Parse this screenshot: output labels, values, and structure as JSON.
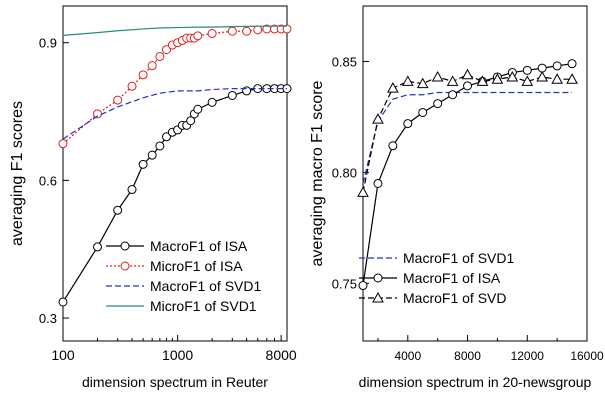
{
  "chart_data": [
    {
      "type": "line",
      "xscale": "log",
      "xlim": [
        100,
        9000
      ],
      "ylim": [
        0.25,
        0.98
      ],
      "xticks": [
        100,
        1000,
        8000
      ],
      "xtick_labels": [
        "100",
        "1000",
        "8000"
      ],
      "yticks": [
        0.3,
        0.6,
        0.9
      ],
      "ytick_labels": [
        "0.3",
        "0.6",
        "0.9"
      ],
      "xlabel": "dimension spectrum in Reuter",
      "ylabel": "averaging F1 scores",
      "legend_position": "bottom-right",
      "series": [
        {
          "name": "MacroF1 of ISA",
          "color": "#000000",
          "line": "solid",
          "marker": "circle",
          "x": [
            100,
            200,
            300,
            400,
            500,
            600,
            700,
            800,
            900,
            1000,
            1100,
            1200,
            1300,
            1400,
            1500,
            2000,
            3000,
            4000,
            5000,
            6000,
            7000,
            8000,
            9000
          ],
          "y": [
            0.335,
            0.455,
            0.535,
            0.58,
            0.635,
            0.655,
            0.675,
            0.695,
            0.705,
            0.71,
            0.72,
            0.72,
            0.73,
            0.745,
            0.755,
            0.77,
            0.785,
            0.795,
            0.8,
            0.8,
            0.8,
            0.8,
            0.8
          ]
        },
        {
          "name": "MicroF1 of ISA",
          "color": "#e02020",
          "line": "dotted",
          "marker": "circle",
          "x": [
            100,
            200,
            300,
            400,
            500,
            600,
            700,
            800,
            900,
            1000,
            1100,
            1200,
            1300,
            1400,
            1500,
            2000,
            3000,
            4000,
            5000,
            6000,
            7000,
            8000,
            9000
          ],
          "y": [
            0.68,
            0.745,
            0.775,
            0.805,
            0.83,
            0.85,
            0.87,
            0.885,
            0.895,
            0.9,
            0.905,
            0.91,
            0.91,
            0.91,
            0.915,
            0.92,
            0.925,
            0.925,
            0.928,
            0.93,
            0.93,
            0.93,
            0.93
          ]
        },
        {
          "name": "MacroF1 of SVD1",
          "color": "#2233cc",
          "line": "dashed",
          "marker": "none",
          "x": [
            100,
            200,
            300,
            500,
            700,
            1000,
            1500,
            2000,
            3000,
            5000,
            8000,
            9000
          ],
          "y": [
            0.69,
            0.74,
            0.76,
            0.78,
            0.79,
            0.795,
            0.795,
            0.798,
            0.8,
            0.8,
            0.8,
            0.8
          ]
        },
        {
          "name": "MicroF1 of SVD1",
          "color": "#2a8a80",
          "line": "solid",
          "marker": "none",
          "x": [
            100,
            200,
            300,
            500,
            700,
            1000,
            1500,
            2000,
            3000,
            5000,
            8000,
            9000
          ],
          "y": [
            0.916,
            0.922,
            0.926,
            0.93,
            0.932,
            0.933,
            0.934,
            0.934,
            0.935,
            0.936,
            0.936,
            0.936
          ]
        }
      ]
    },
    {
      "type": "line",
      "xlim": [
        1000,
        16000
      ],
      "ylim": [
        0.724,
        0.875
      ],
      "xticks": [
        4000,
        8000,
        12000,
        16000
      ],
      "xtick_labels": [
        "4000",
        "8000",
        "12000",
        "16000"
      ],
      "yticks": [
        0.75,
        0.8,
        0.85
      ],
      "ytick_labels": [
        "0.75",
        "0.80",
        "0.85"
      ],
      "xlabel": "dimension spectrum in 20-newsgroup",
      "ylabel": "averaging macro F1 score",
      "legend_position": "bottom-right",
      "series": [
        {
          "name": "MacroF1 of SVD1",
          "color": "#2233cc",
          "line": "dashed",
          "marker": "none",
          "x": [
            1000,
            2000,
            3000,
            4000,
            5000,
            6000,
            7000,
            8000,
            9000,
            10000,
            11000,
            12000,
            13000,
            14000,
            15000
          ],
          "y": [
            0.795,
            0.823,
            0.833,
            0.835,
            0.835,
            0.836,
            0.836,
            0.836,
            0.836,
            0.836,
            0.836,
            0.836,
            0.836,
            0.836,
            0.836
          ]
        },
        {
          "name": "MacroF1 of ISA",
          "color": "#000000",
          "line": "solid",
          "marker": "circle",
          "x": [
            1000,
            2000,
            3000,
            4000,
            5000,
            6000,
            7000,
            8000,
            9000,
            10000,
            11000,
            12000,
            13000,
            14000,
            15000
          ],
          "y": [
            0.749,
            0.795,
            0.812,
            0.822,
            0.827,
            0.831,
            0.835,
            0.839,
            0.841,
            0.843,
            0.845,
            0.846,
            0.847,
            0.848,
            0.849
          ]
        },
        {
          "name": "MacroF1 of SVD",
          "color": "#000000",
          "line": "dashed",
          "marker": "triangle",
          "x": [
            1000,
            2000,
            3000,
            4000,
            5000,
            6000,
            7000,
            8000,
            9000,
            10000,
            11000,
            12000,
            13000,
            14000,
            15000
          ],
          "y": [
            0.791,
            0.824,
            0.838,
            0.841,
            0.84,
            0.843,
            0.841,
            0.844,
            0.841,
            0.842,
            0.843,
            0.841,
            0.843,
            0.842,
            0.842
          ]
        }
      ]
    }
  ]
}
